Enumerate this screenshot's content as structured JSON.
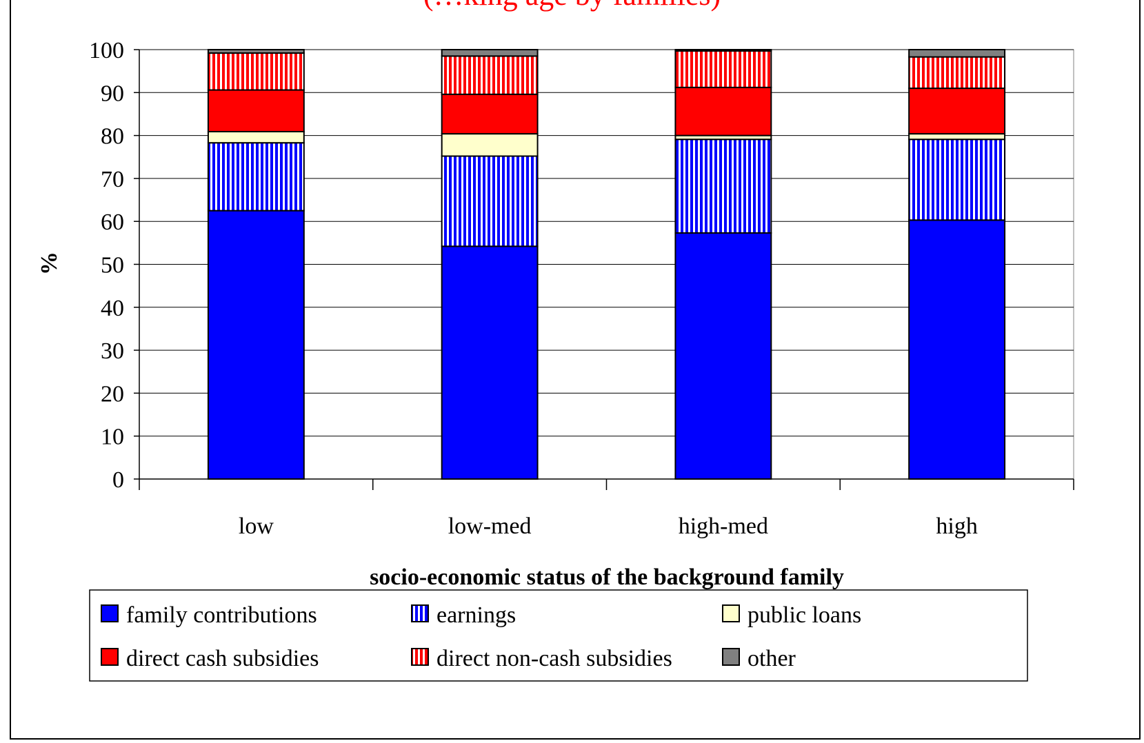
{
  "chart_data": {
    "type": "bar",
    "stacked": true,
    "title": "(…king age by families)",
    "xlabel": "socio-economic status of the background family",
    "ylabel": "%",
    "ylim": [
      0,
      100
    ],
    "yticks": [
      0,
      10,
      20,
      30,
      40,
      50,
      60,
      70,
      80,
      90,
      100
    ],
    "grid": true,
    "legend_position": "bottom",
    "categories": [
      "low",
      "low-med",
      "high-med",
      "high"
    ],
    "series": [
      {
        "name": "family contributions",
        "color": "#0000ff",
        "pattern": "solid",
        "values": [
          62.5,
          54.2,
          57.3,
          60.3
        ]
      },
      {
        "name": "earnings",
        "color": "#0000ff",
        "pattern": "vertical-stripes",
        "values": [
          15.8,
          21.0,
          21.8,
          18.8
        ]
      },
      {
        "name": "public loans",
        "color": "#ffffcc",
        "pattern": "solid",
        "values": [
          2.6,
          5.2,
          0.9,
          1.3
        ]
      },
      {
        "name": "direct cash subsidies",
        "color": "#ff0000",
        "pattern": "solid",
        "values": [
          9.7,
          9.2,
          11.2,
          10.6
        ]
      },
      {
        "name": "direct non-cash subsidies",
        "color": "#ff0000",
        "pattern": "vertical-stripes",
        "values": [
          8.6,
          8.9,
          8.5,
          7.3
        ]
      },
      {
        "name": "other",
        "color": "#808080",
        "pattern": "solid",
        "values": [
          0.8,
          1.5,
          0.3,
          1.7
        ]
      }
    ]
  }
}
